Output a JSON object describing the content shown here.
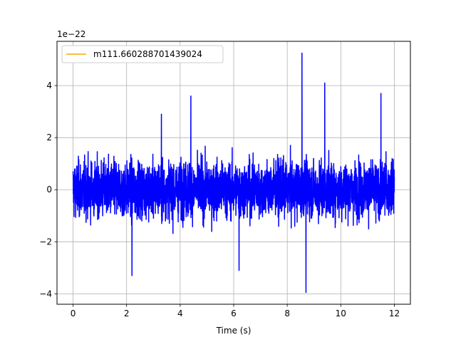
{
  "chart_data": {
    "type": "line",
    "title": "",
    "xlabel": "Time (s)",
    "ylabel": "",
    "y_offset_text": "1e−22",
    "xlim": [
      -0.6,
      12.6
    ],
    "ylim": [
      -4.4,
      5.7
    ],
    "xticks": [
      0,
      2,
      4,
      6,
      8,
      10,
      12
    ],
    "xtick_labels": [
      "0",
      "2",
      "4",
      "6",
      "8",
      "10",
      "12"
    ],
    "yticks": [
      -4,
      -2,
      0,
      2,
      4
    ],
    "ytick_labels": [
      "−4",
      "−2",
      "0",
      "2",
      "4"
    ],
    "grid": true,
    "legend_position": "upper-left",
    "series": [
      {
        "name": "m111.660288701439024",
        "legend_color": "#ffa500",
        "line_color": "#0000ff",
        "x_start": 0,
        "x_end": 12,
        "typical_amplitude": 1.6,
        "envelope": [
          -2.4,
          2.6
        ],
        "peaks": [
          {
            "x": 8.55,
            "y": 5.25
          },
          {
            "x": 9.4,
            "y": 4.1
          },
          {
            "x": 11.5,
            "y": 3.7
          },
          {
            "x": 4.4,
            "y": 3.6
          },
          {
            "x": 8.7,
            "y": -3.95
          },
          {
            "x": 3.3,
            "y": 2.9
          },
          {
            "x": 6.2,
            "y": -3.1
          },
          {
            "x": 2.2,
            "y": -3.3
          }
        ]
      }
    ]
  }
}
